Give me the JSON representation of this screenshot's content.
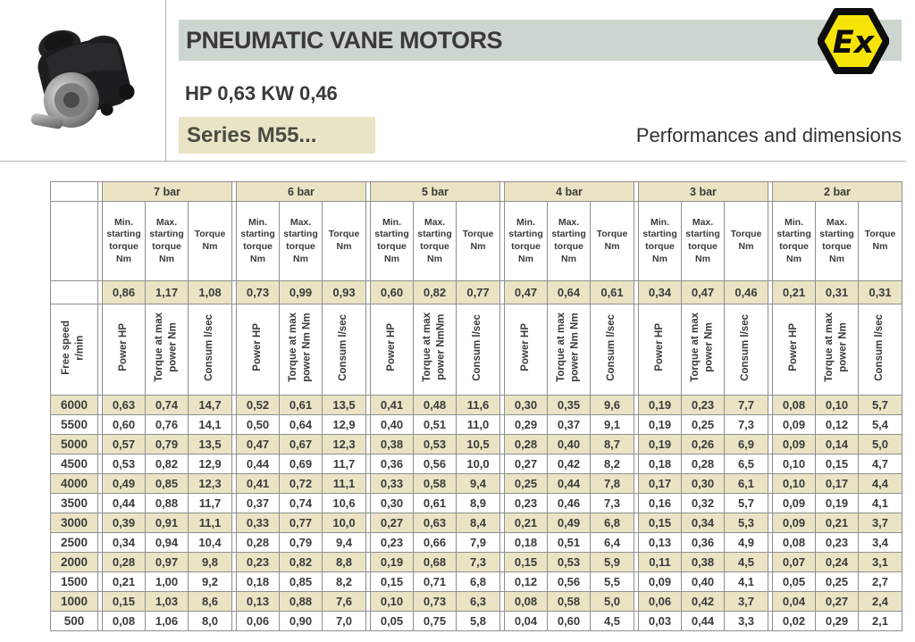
{
  "header": {
    "title": "PNEUMATIC VANE MOTORS",
    "power_line": "HP 0,63 KW 0,46",
    "series": "Series M55...",
    "right_caption": "Performances and dimensions",
    "ex_logo_text": "Ex"
  },
  "colors": {
    "title_band": "#ccd5ce",
    "series_band": "#e9e4c6",
    "table_beige": "#eae4c5",
    "table_border": "#8f8f8f",
    "text": "#3b3b3b",
    "ex_yellow": "#f6e409"
  },
  "table": {
    "free_speed_label": "Free speed\nr/min",
    "power_label": "Power HP",
    "consum_label": "Consum l/sec",
    "sub_headers": [
      "Min.\nstarting\ntorque\nNm",
      "Max.\nstarting\ntorque\nNm",
      "Torque\nNm"
    ],
    "pressure_groups": [
      {
        "label": "7 bar",
        "starting": [
          "0,86",
          "1,17",
          "1,08"
        ],
        "rot_torque_label": "Torque at max\npower Nm"
      },
      {
        "label": "6 bar",
        "starting": [
          "0,73",
          "0,99",
          "0,93"
        ],
        "rot_torque_label": "Torque at max\npower Nm Nm"
      },
      {
        "label": "5 bar",
        "starting": [
          "0,60",
          "0,82",
          "0,77"
        ],
        "rot_torque_label": "Torque at max\npower NmNm"
      },
      {
        "label": "4 bar",
        "starting": [
          "0,47",
          "0,64",
          "0,61"
        ],
        "rot_torque_label": "Torque at max\npower Nm Nm"
      },
      {
        "label": "3 bar",
        "starting": [
          "0,34",
          "0,47",
          "0,46"
        ],
        "rot_torque_label": "Torque at max\npower Nm"
      },
      {
        "label": "2 bar",
        "starting": [
          "0,21",
          "0,31",
          "0,31"
        ],
        "rot_torque_label": "Torque at max\npower Nm"
      }
    ],
    "rows": [
      {
        "speed": "6000",
        "values": [
          "0,63",
          "0,74",
          "14,7",
          "0,52",
          "0,61",
          "13,5",
          "0,41",
          "0,48",
          "11,6",
          "0,30",
          "0,35",
          "9,6",
          "0,19",
          "0,23",
          "7,7",
          "0,08",
          "0,10",
          "5,7"
        ]
      },
      {
        "speed": "5500",
        "values": [
          "0,60",
          "0,76",
          "14,1",
          "0,50",
          "0,64",
          "12,9",
          "0,40",
          "0,51",
          "11,0",
          "0,29",
          "0,37",
          "9,1",
          "0,19",
          "0,25",
          "7,3",
          "0,09",
          "0,12",
          "5,4"
        ]
      },
      {
        "speed": "5000",
        "values": [
          "0,57",
          "0,79",
          "13,5",
          "0,47",
          "0,67",
          "12,3",
          "0,38",
          "0,53",
          "10,5",
          "0,28",
          "0,40",
          "8,7",
          "0,19",
          "0,26",
          "6,9",
          "0,09",
          "0,14",
          "5,0"
        ]
      },
      {
        "speed": "4500",
        "values": [
          "0,53",
          "0,82",
          "12,9",
          "0,44",
          "0,69",
          "11,7",
          "0,36",
          "0,56",
          "10,0",
          "0,27",
          "0,42",
          "8,2",
          "0,18",
          "0,28",
          "6,5",
          "0,10",
          "0,15",
          "4,7"
        ]
      },
      {
        "speed": "4000",
        "values": [
          "0,49",
          "0,85",
          "12,3",
          "0,41",
          "0,72",
          "11,1",
          "0,33",
          "0,58",
          "9,4",
          "0,25",
          "0,44",
          "7,8",
          "0,17",
          "0,30",
          "6,1",
          "0,10",
          "0,17",
          "4,4"
        ]
      },
      {
        "speed": "3500",
        "values": [
          "0,44",
          "0,88",
          "11,7",
          "0,37",
          "0,74",
          "10,6",
          "0,30",
          "0,61",
          "8,9",
          "0,23",
          "0,46",
          "7,3",
          "0,16",
          "0,32",
          "5,7",
          "0,09",
          "0,19",
          "4,1"
        ]
      },
      {
        "speed": "3000",
        "values": [
          "0,39",
          "0,91",
          "11,1",
          "0,33",
          "0,77",
          "10,0",
          "0,27",
          "0,63",
          "8,4",
          "0,21",
          "0,49",
          "6,8",
          "0,15",
          "0,34",
          "5,3",
          "0,09",
          "0,21",
          "3,7"
        ]
      },
      {
        "speed": "2500",
        "values": [
          "0,34",
          "0,94",
          "10,4",
          "0,28",
          "0,79",
          "9,4",
          "0,23",
          "0,66",
          "7,9",
          "0,18",
          "0,51",
          "6,4",
          "0,13",
          "0,36",
          "4,9",
          "0,08",
          "0,23",
          "3,4"
        ]
      },
      {
        "speed": "2000",
        "values": [
          "0,28",
          "0,97",
          "9,8",
          "0,23",
          "0,82",
          "8,8",
          "0,19",
          "0,68",
          "7,3",
          "0,15",
          "0,53",
          "5,9",
          "0,11",
          "0,38",
          "4,5",
          "0,07",
          "0,24",
          "3,1"
        ]
      },
      {
        "speed": "1500",
        "values": [
          "0,21",
          "1,00",
          "9,2",
          "0,18",
          "0,85",
          "8,2",
          "0,15",
          "0,71",
          "6,8",
          "0,12",
          "0,56",
          "5,5",
          "0,09",
          "0,40",
          "4,1",
          "0,05",
          "0,25",
          "2,7"
        ]
      },
      {
        "speed": "1000",
        "values": [
          "0,15",
          "1,03",
          "8,6",
          "0,13",
          "0,88",
          "7,6",
          "0,10",
          "0,73",
          "6,3",
          "0,08",
          "0,58",
          "5,0",
          "0,06",
          "0,42",
          "3,7",
          "0,04",
          "0,27",
          "2,4"
        ]
      },
      {
        "speed": "500",
        "values": [
          "0,08",
          "1,06",
          "8,0",
          "0,06",
          "0,90",
          "7,0",
          "0,05",
          "0,75",
          "5,8",
          "0,04",
          "0,60",
          "4,5",
          "0,03",
          "0,44",
          "3,3",
          "0,02",
          "0,29",
          "2,1"
        ]
      }
    ]
  }
}
